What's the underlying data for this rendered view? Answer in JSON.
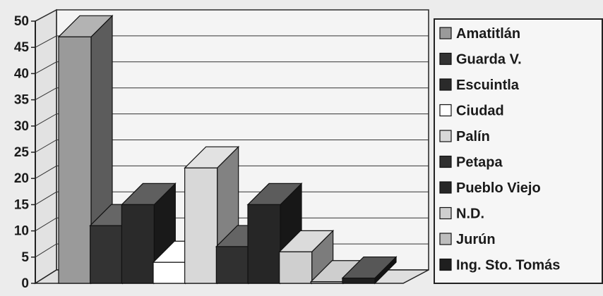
{
  "chart_data": {
    "type": "bar",
    "subtype": "3d-column",
    "title": "",
    "xlabel": "",
    "ylabel": "",
    "ylim": [
      0,
      50
    ],
    "yticks": [
      0,
      5,
      10,
      15,
      20,
      25,
      30,
      35,
      40,
      45,
      50
    ],
    "grid": true,
    "legend_position": "right",
    "series": [
      {
        "name": "Amatitlán",
        "value": 47,
        "color": "#9a9a9a"
      },
      {
        "name": "Guarda V.",
        "value": 11,
        "color": "#333333"
      },
      {
        "name": "Escuintla",
        "value": 15,
        "color": "#2a2a2a"
      },
      {
        "name": "Ciudad",
        "value": 4,
        "color": "#ffffff"
      },
      {
        "name": "Palín",
        "value": 22,
        "color": "#d8d8d8"
      },
      {
        "name": "Petapa",
        "value": 7,
        "color": "#303030"
      },
      {
        "name": "Pueblo Viejo",
        "value": 15,
        "color": "#262626"
      },
      {
        "name": "N.D.",
        "value": 6,
        "color": "#cfcfcf"
      },
      {
        "name": "Jurún",
        "value": 0.3,
        "color": "#bdbdbd"
      },
      {
        "name": "Ing. Sto. Tomás",
        "value": 1,
        "color": "#1f1f1f"
      }
    ]
  }
}
